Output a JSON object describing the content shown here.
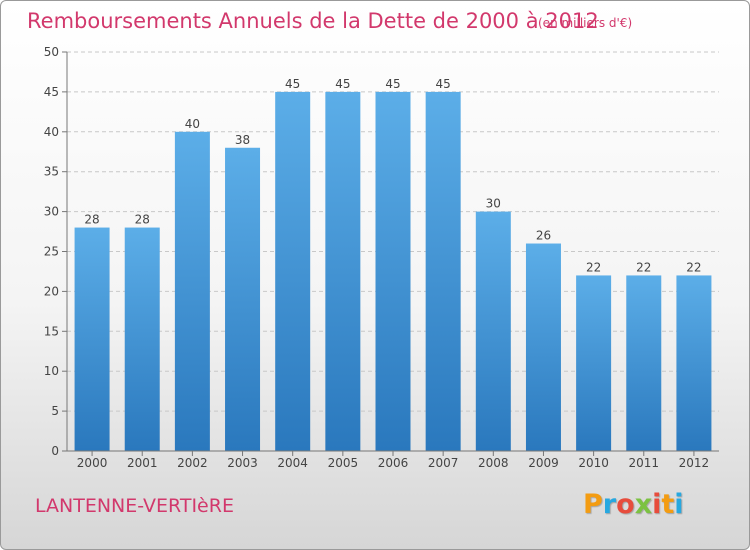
{
  "header": {
    "title": "Remboursements Annuels de la Dette de 2000 à 2012",
    "subtitle": "(en milliers d'€)"
  },
  "footer": {
    "commune": "LANTENNE-VERTIèRE",
    "logo_letters": [
      "P",
      "r",
      "o",
      "x",
      "i",
      "t",
      "i"
    ],
    "logo_colors": [
      "#f39c12",
      "#27a8e0",
      "#e74c3c",
      "#7cc242",
      "#e74c3c",
      "#f39c12",
      "#27a8e0"
    ]
  },
  "colors": {
    "bar": "#3d93d8",
    "bar_light": "#5caee8",
    "bar_dark": "#2a78bd",
    "text": "#d2386c"
  },
  "chart_data": {
    "type": "bar",
    "categories": [
      "2000",
      "2001",
      "2002",
      "2003",
      "2004",
      "2005",
      "2006",
      "2007",
      "2008",
      "2009",
      "2010",
      "2011",
      "2012"
    ],
    "values": [
      28,
      28,
      40,
      38,
      45,
      45,
      45,
      45,
      30,
      26,
      22,
      22,
      22
    ],
    "yticks": [
      0,
      5,
      10,
      15,
      20,
      25,
      30,
      35,
      40,
      45,
      50
    ],
    "ylim": [
      0,
      50
    ],
    "grid": true,
    "legend": "none",
    "xlabel": "",
    "ylabel": ""
  }
}
